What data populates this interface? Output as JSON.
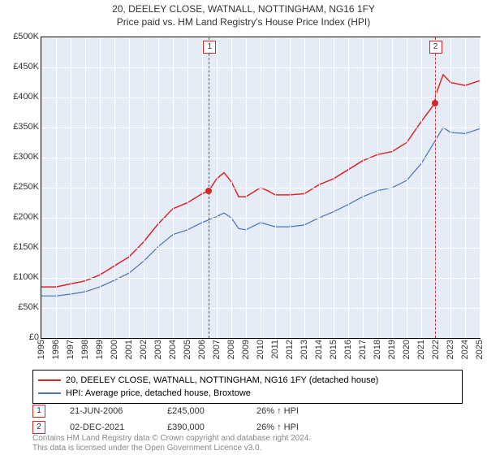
{
  "title": "20, DEELEY CLOSE, WATNALL, NOTTINGHAM, NG16 1FY",
  "subtitle": "Price paid vs. HM Land Registry's House Price Index (HPI)",
  "chart": {
    "type": "line",
    "background_color": "#e6ecf5",
    "grid_color": "#ffffff",
    "border_color": "#000000",
    "ylim": [
      0,
      500000
    ],
    "ytick_step": 50000,
    "y_format_prefix": "£",
    "y_labels": [
      "£0",
      "£50K",
      "£100K",
      "£150K",
      "£200K",
      "£250K",
      "£300K",
      "£350K",
      "£400K",
      "£450K",
      "£500K"
    ],
    "xlim": [
      1995,
      2025
    ],
    "xtick_step": 1,
    "x_labels": [
      "1995",
      "1996",
      "1997",
      "1998",
      "1999",
      "2000",
      "2001",
      "2002",
      "2003",
      "2004",
      "2005",
      "2006",
      "2007",
      "2008",
      "2009",
      "2010",
      "2011",
      "2012",
      "2013",
      "2014",
      "2015",
      "2016",
      "2017",
      "2018",
      "2019",
      "2020",
      "2021",
      "2022",
      "2023",
      "2024",
      "2025"
    ],
    "series": [
      {
        "name": "property",
        "label": "20, DEELEY CLOSE, WATNALL, NOTTINGHAM, NG16 1FY (detached house)",
        "color": "#d62728",
        "line_width": 1.5,
        "data": [
          [
            1995,
            85000
          ],
          [
            1996,
            85000
          ],
          [
            1997,
            90000
          ],
          [
            1998,
            95000
          ],
          [
            1999,
            105000
          ],
          [
            2000,
            120000
          ],
          [
            2001,
            135000
          ],
          [
            2002,
            160000
          ],
          [
            2003,
            190000
          ],
          [
            2004,
            215000
          ],
          [
            2005,
            225000
          ],
          [
            2006,
            240000
          ],
          [
            2006.47,
            245000
          ],
          [
            2007,
            265000
          ],
          [
            2007.5,
            275000
          ],
          [
            2008,
            260000
          ],
          [
            2008.5,
            235000
          ],
          [
            2009,
            235000
          ],
          [
            2010,
            250000
          ],
          [
            2010.5,
            245000
          ],
          [
            2011,
            238000
          ],
          [
            2012,
            238000
          ],
          [
            2013,
            240000
          ],
          [
            2014,
            255000
          ],
          [
            2015,
            265000
          ],
          [
            2016,
            280000
          ],
          [
            2017,
            295000
          ],
          [
            2018,
            305000
          ],
          [
            2019,
            310000
          ],
          [
            2020,
            325000
          ],
          [
            2021,
            360000
          ],
          [
            2021.92,
            390000
          ],
          [
            2022,
            405000
          ],
          [
            2022.5,
            438000
          ],
          [
            2023,
            425000
          ],
          [
            2024,
            420000
          ],
          [
            2025,
            428000
          ]
        ]
      },
      {
        "name": "hpi",
        "label": "HPI: Average price, detached house, Broxtowe",
        "color": "#4a72b8",
        "line_width": 1.2,
        "data": [
          [
            1995,
            70000
          ],
          [
            1996,
            70000
          ],
          [
            1997,
            73000
          ],
          [
            1998,
            77000
          ],
          [
            1999,
            85000
          ],
          [
            2000,
            96000
          ],
          [
            2001,
            108000
          ],
          [
            2002,
            128000
          ],
          [
            2003,
            152000
          ],
          [
            2004,
            172000
          ],
          [
            2005,
            180000
          ],
          [
            2006,
            192000
          ],
          [
            2007,
            202000
          ],
          [
            2007.5,
            208000
          ],
          [
            2008,
            200000
          ],
          [
            2008.5,
            182000
          ],
          [
            2009,
            180000
          ],
          [
            2010,
            192000
          ],
          [
            2011,
            185000
          ],
          [
            2012,
            185000
          ],
          [
            2013,
            188000
          ],
          [
            2014,
            200000
          ],
          [
            2015,
            210000
          ],
          [
            2016,
            222000
          ],
          [
            2017,
            235000
          ],
          [
            2018,
            245000
          ],
          [
            2019,
            250000
          ],
          [
            2020,
            262000
          ],
          [
            2021,
            290000
          ],
          [
            2022,
            330000
          ],
          [
            2022.5,
            350000
          ],
          [
            2023,
            342000
          ],
          [
            2024,
            340000
          ],
          [
            2025,
            348000
          ]
        ]
      }
    ],
    "sale_markers": [
      {
        "id": "1",
        "year": 2006.47,
        "value": 245000,
        "date": "21-JUN-2006",
        "price": "£245,000",
        "hpi_change": "26% ↑ HPI"
      },
      {
        "id": "2",
        "year": 2021.92,
        "value": 390000,
        "date": "02-DEC-2021",
        "price": "£390,000",
        "hpi_change": "26% ↑ HPI"
      }
    ],
    "marker_border_color": "#d62728",
    "vline_color": "#d62728"
  },
  "footer_line1": "Contains HM Land Registry data © Crown copyright and database right 2024.",
  "footer_line2": "This data is licensed under the Open Government Licence v3.0."
}
